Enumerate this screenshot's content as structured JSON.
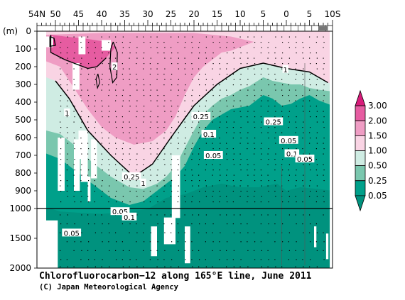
{
  "chart_data": {
    "type": "heatmap",
    "title": "Chlorofluorocarbon−12 along 165°E line, June 2011",
    "credit": "(C) Japan Meteorological Agency",
    "ylabel_unit": "(m)",
    "x_axis": {
      "orientation": "latitude, 54N on left to 10S on right",
      "range": [
        54,
        -10
      ],
      "tick_labels": [
        {
          "text": "54N",
          "lat": 54
        },
        {
          "text": "50",
          "lat": 50
        },
        {
          "text": "45",
          "lat": 45
        },
        {
          "text": "40",
          "lat": 40
        },
        {
          "text": "35",
          "lat": 35
        },
        {
          "text": "30",
          "lat": 30
        },
        {
          "text": "25",
          "lat": 25
        },
        {
          "text": "20",
          "lat": 20
        },
        {
          "text": "15",
          "lat": 15
        },
        {
          "text": "10",
          "lat": 10
        },
        {
          "text": "5",
          "lat": 5
        },
        {
          "text": "0",
          "lat": 0
        },
        {
          "text": "5",
          "lat": -5
        },
        {
          "text": "10S",
          "lat": -10
        }
      ]
    },
    "y_axis": {
      "range": [
        0,
        2000
      ],
      "break_at": 1000,
      "note": "upper panel 0-1000 m linear, lower panel 1000-2000 m compressed",
      "tick_labels": [
        "0",
        "100",
        "200",
        "300",
        "400",
        "500",
        "600",
        "700",
        "800",
        "900",
        "1000",
        "1500",
        "2000"
      ]
    },
    "colorbar": {
      "levels": [
        "3.00",
        "2.00",
        "1.50",
        "1.00",
        "0.50",
        "0.25",
        "0.05"
      ],
      "colors": [
        "#d81b7a",
        "#e65ca1",
        "#ef9dc4",
        "#f9d4e4",
        "#cfece3",
        "#7ac7ae",
        "#00a08a",
        "#00927e"
      ]
    },
    "section_outline_depth_m": [
      {
        "lat": 50,
        "contour_1": 280
      },
      {
        "lat": 47,
        "contour_1": 380
      },
      {
        "lat": 43,
        "contour_1": 560
      },
      {
        "lat": 38,
        "contour_1": 700
      },
      {
        "lat": 33,
        "contour_1": 820
      },
      {
        "lat": 29,
        "contour_1": 750
      },
      {
        "lat": 25,
        "contour_1": 600
      },
      {
        "lat": 20,
        "contour_1": 420
      },
      {
        "lat": 15,
        "contour_1": 300
      },
      {
        "lat": 10,
        "contour_1": 210
      },
      {
        "lat": 5,
        "contour_1": 180
      },
      {
        "lat": 0,
        "contour_1": 210
      },
      {
        "lat": -5,
        "contour_1": 230
      },
      {
        "lat": -9,
        "contour_1": 290
      }
    ],
    "contour_labels": [
      {
        "text": "2",
        "lat": 37.2,
        "depth": 200
      },
      {
        "text": "1",
        "lat": 47.5,
        "depth": 460
      },
      {
        "text": "1",
        "lat": 31.0,
        "depth": 855
      },
      {
        "text": "1",
        "lat": 0.2,
        "depth": 215
      },
      {
        "text": "0.25",
        "lat": 18.5,
        "depth": 480
      },
      {
        "text": "0.25",
        "lat": 2.8,
        "depth": 510
      },
      {
        "text": "0.25",
        "lat": 33.5,
        "depth": 820
      },
      {
        "text": "0.1",
        "lat": 16.8,
        "depth": 580
      },
      {
        "text": "0.1",
        "lat": -1.2,
        "depth": 690
      },
      {
        "text": "0.05",
        "lat": 15.8,
        "depth": 700
      },
      {
        "text": "0.05",
        "lat": -0.5,
        "depth": 615
      },
      {
        "text": "0.05",
        "lat": -4.0,
        "depth": 720
      },
      {
        "text": "0.05",
        "lat": 36.0,
        "depth": 1050
      },
      {
        "text": "0.05",
        "lat": 46.5,
        "depth": 1410
      },
      {
        "text": "0.1",
        "lat": 34.0,
        "depth": 1140
      }
    ]
  }
}
